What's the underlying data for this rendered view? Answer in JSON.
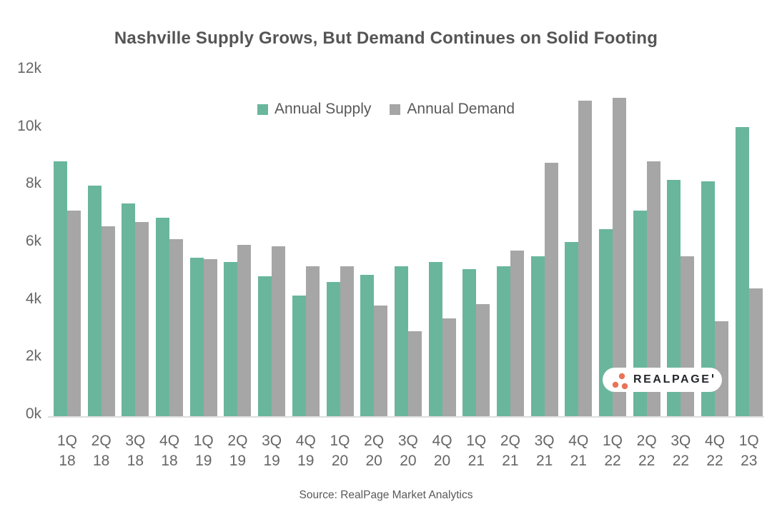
{
  "source_note": "Source: RealPage Market Analytics",
  "logo": {
    "text": "REALPAGE",
    "dots_color": "#e97356",
    "text_color": "#23262c"
  },
  "colors": {
    "supply": "#69b69d",
    "demand": "#a6a6a6",
    "title_text": "#555555",
    "axis_text": "#666666",
    "axis_line": "#dedede",
    "background": "#ffffff"
  },
  "chart_data": {
    "type": "bar",
    "title": "Nashville Supply Grows, But Demand Continues on Solid Footing",
    "xlabel": "",
    "ylabel": "",
    "grid": false,
    "legend_position": "top-center-inside",
    "ylim": [
      0,
      12000
    ],
    "yticks": [
      {
        "value": 0,
        "label": "0k"
      },
      {
        "value": 2000,
        "label": "2k"
      },
      {
        "value": 4000,
        "label": "4k"
      },
      {
        "value": 6000,
        "label": "6k"
      },
      {
        "value": 8000,
        "label": "8k"
      },
      {
        "value": 10000,
        "label": "10k"
      },
      {
        "value": 12000,
        "label": "12k"
      }
    ],
    "categories": [
      "1Q 18",
      "2Q 18",
      "3Q 18",
      "4Q 18",
      "1Q 19",
      "2Q 19",
      "3Q 19",
      "4Q 19",
      "1Q 20",
      "2Q 20",
      "3Q 20",
      "4Q 20",
      "1Q 21",
      "2Q 21",
      "3Q 21",
      "4Q 21",
      "1Q 22",
      "2Q 22",
      "3Q 22",
      "4Q 22",
      "1Q 23"
    ],
    "series": [
      {
        "name": "Annual Supply",
        "color": "#69b69d",
        "values": [
          8850,
          8000,
          7400,
          6900,
          5500,
          5350,
          4850,
          4200,
          4650,
          4900,
          5200,
          5350,
          5100,
          5200,
          5550,
          6050,
          6500,
          7150,
          8200,
          8150,
          10050
        ]
      },
      {
        "name": "Annual Demand",
        "color": "#a6a6a6",
        "values": [
          7150,
          6600,
          6750,
          6150,
          5450,
          5950,
          5900,
          5200,
          5200,
          3850,
          2950,
          3400,
          3900,
          5750,
          8800,
          10950,
          11050,
          8850,
          5550,
          3300,
          4450
        ]
      }
    ]
  }
}
